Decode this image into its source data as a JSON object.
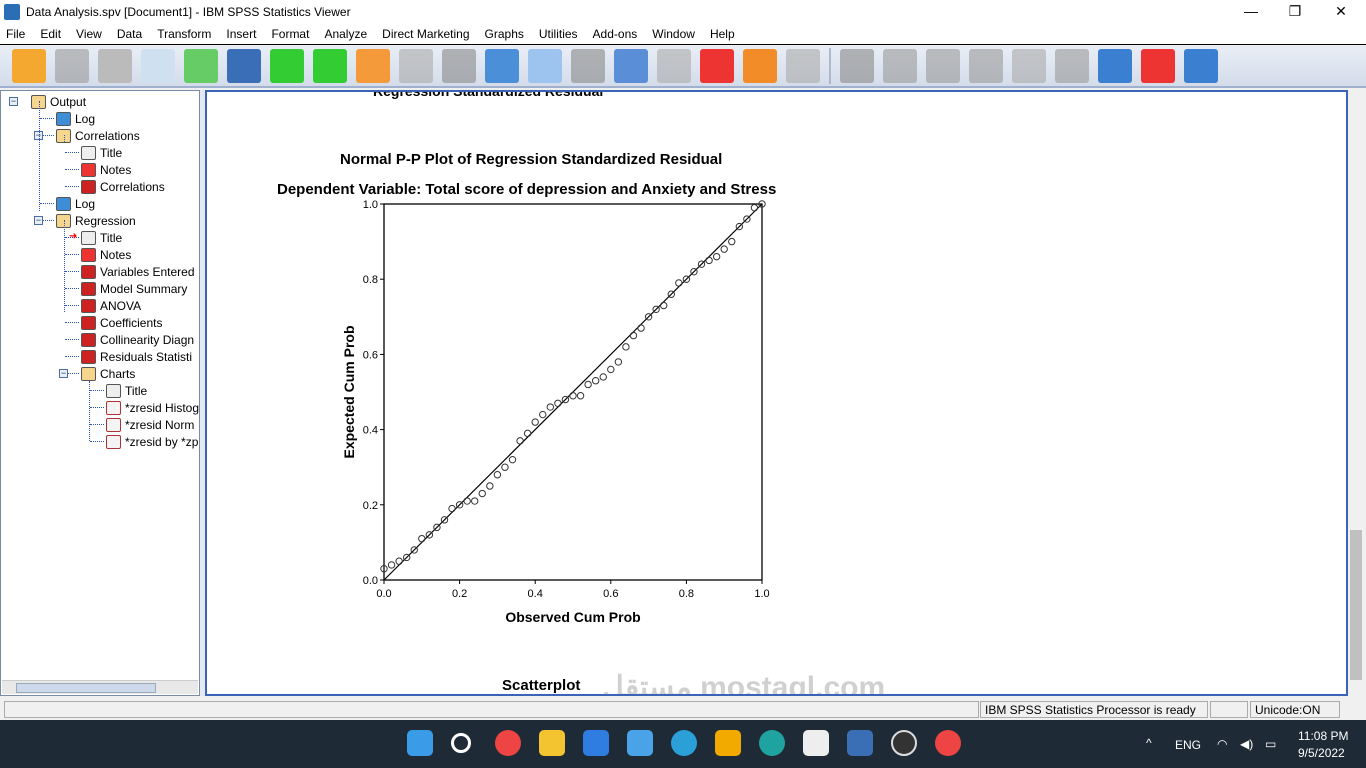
{
  "window": {
    "title": "Data Analysis.spv [Document1] - IBM SPSS Statistics Viewer",
    "minimize": "—",
    "maximize": "❐",
    "close": "✕"
  },
  "menu": [
    "File",
    "Edit",
    "View",
    "Data",
    "Transform",
    "Insert",
    "Format",
    "Analyze",
    "Direct Marketing",
    "Graphs",
    "Utilities",
    "Add-ons",
    "Window",
    "Help"
  ],
  "toolbar_icons": [
    "open-icon",
    "save-icon",
    "print-icon",
    "print-preview-icon",
    "export-icon",
    "recall-dialog-icon",
    "undo-icon",
    "redo-icon",
    "goto-data-icon",
    "goto-case-icon",
    "goto-variable-icon",
    "variables-icon",
    "use-sets-icon",
    "show-all-variables-icon",
    "spell-check-icon",
    "designate-window-icon",
    "script-icon",
    "run-script-icon",
    "pivot-icon",
    "promote-icon",
    "demote-icon",
    "expand-icon",
    "collapse-icon",
    "show-icon",
    "hide-icon",
    "insert-heading-icon",
    "insert-title-icon",
    "insert-text-icon"
  ],
  "tree": [
    {
      "label": "Output",
      "icon": "book"
    },
    {
      "label": "Log",
      "icon": "log"
    },
    {
      "label": "Correlations",
      "icon": "book"
    },
    {
      "label": "Title",
      "icon": "title"
    },
    {
      "label": "Notes",
      "icon": "notes"
    },
    {
      "label": "Correlations",
      "icon": "table"
    },
    {
      "label": "Log",
      "icon": "log"
    },
    {
      "label": "Regression",
      "icon": "book"
    },
    {
      "label": "Title",
      "icon": "title"
    },
    {
      "label": "Notes",
      "icon": "notes"
    },
    {
      "label": "Variables Entered",
      "icon": "table"
    },
    {
      "label": "Model Summary",
      "icon": "table"
    },
    {
      "label": "ANOVA",
      "icon": "table"
    },
    {
      "label": "Coefficients",
      "icon": "table"
    },
    {
      "label": "Collinearity Diagn",
      "icon": "table"
    },
    {
      "label": "Residuals Statisti",
      "icon": "table"
    },
    {
      "label": "Charts",
      "icon": "book"
    },
    {
      "label": "Title",
      "icon": "title"
    },
    {
      "label": "*zresid Histog",
      "icon": "chart"
    },
    {
      "label": "*zresid Norm",
      "icon": "chart"
    },
    {
      "label": "*zresid by *zp",
      "icon": "chart"
    }
  ],
  "content": {
    "cut_heading": "Regression Standardized Residual",
    "next_heading": "Scatterplot"
  },
  "chart_data": {
    "type": "scatter",
    "title": "Normal P-P Plot of Regression Standardized Residual",
    "subtitle": "Dependent Variable: Total score of depression and Anxiety and Stress",
    "xlabel": "Observed Cum Prob",
    "ylabel": "Expected Cum Prob",
    "xlim": [
      0,
      1
    ],
    "ylim": [
      0,
      1
    ],
    "xticks": [
      "0.0",
      "0.2",
      "0.4",
      "0.6",
      "0.8",
      "1.0"
    ],
    "yticks": [
      "0.0",
      "0.2",
      "0.4",
      "0.6",
      "0.8",
      "1.0"
    ],
    "reference_line": [
      [
        0,
        0
      ],
      [
        1,
        1
      ]
    ],
    "grid": false,
    "points": [
      [
        0.0,
        0.03
      ],
      [
        0.02,
        0.04
      ],
      [
        0.04,
        0.05
      ],
      [
        0.06,
        0.06
      ],
      [
        0.08,
        0.08
      ],
      [
        0.1,
        0.11
      ],
      [
        0.12,
        0.12
      ],
      [
        0.14,
        0.14
      ],
      [
        0.16,
        0.16
      ],
      [
        0.18,
        0.19
      ],
      [
        0.2,
        0.2
      ],
      [
        0.22,
        0.21
      ],
      [
        0.24,
        0.21
      ],
      [
        0.26,
        0.23
      ],
      [
        0.28,
        0.25
      ],
      [
        0.3,
        0.28
      ],
      [
        0.32,
        0.3
      ],
      [
        0.34,
        0.32
      ],
      [
        0.36,
        0.37
      ],
      [
        0.38,
        0.39
      ],
      [
        0.4,
        0.42
      ],
      [
        0.42,
        0.44
      ],
      [
        0.44,
        0.46
      ],
      [
        0.46,
        0.47
      ],
      [
        0.48,
        0.48
      ],
      [
        0.5,
        0.49
      ],
      [
        0.52,
        0.49
      ],
      [
        0.54,
        0.52
      ],
      [
        0.56,
        0.53
      ],
      [
        0.58,
        0.54
      ],
      [
        0.6,
        0.56
      ],
      [
        0.62,
        0.58
      ],
      [
        0.64,
        0.62
      ],
      [
        0.66,
        0.65
      ],
      [
        0.68,
        0.67
      ],
      [
        0.7,
        0.7
      ],
      [
        0.72,
        0.72
      ],
      [
        0.74,
        0.73
      ],
      [
        0.76,
        0.76
      ],
      [
        0.78,
        0.79
      ],
      [
        0.8,
        0.8
      ],
      [
        0.82,
        0.82
      ],
      [
        0.84,
        0.84
      ],
      [
        0.86,
        0.85
      ],
      [
        0.88,
        0.86
      ],
      [
        0.9,
        0.88
      ],
      [
        0.92,
        0.9
      ],
      [
        0.94,
        0.94
      ],
      [
        0.96,
        0.96
      ],
      [
        0.98,
        0.99
      ],
      [
        1.0,
        1.0
      ]
    ]
  },
  "status": {
    "processor": "IBM SPSS Statistics Processor is ready",
    "unicode": "Unicode:ON"
  },
  "taskbar": {
    "lang": "ENG",
    "time": "11:08 PM",
    "date": "9/5/2022",
    "caret": "^"
  },
  "watermark": "مستقل mostaql.com"
}
